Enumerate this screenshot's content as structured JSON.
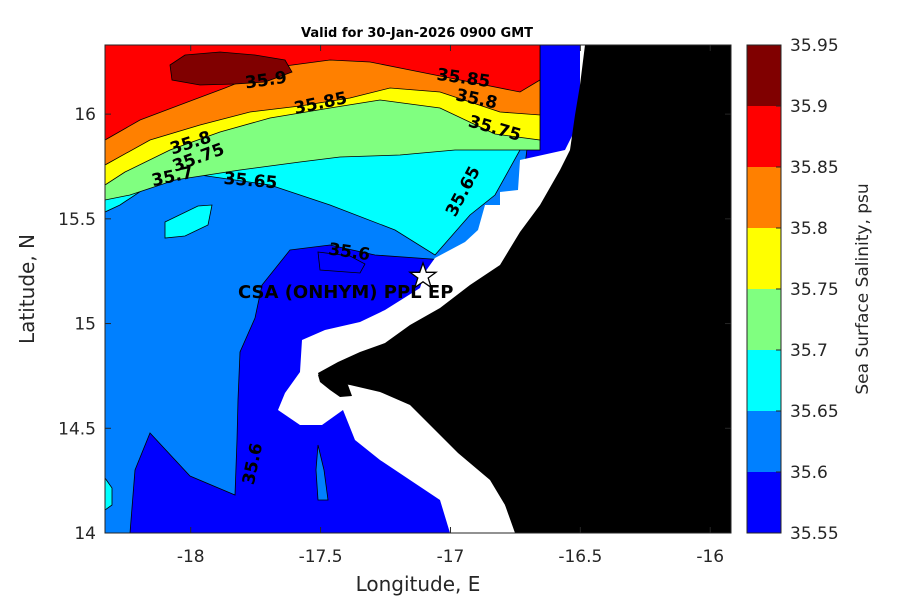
{
  "chart_data": {
    "type": "contourf-map",
    "title": "Valid for 30-Jan-2026 0900 GMT",
    "xlabel": "Longitude, E",
    "ylabel": "Latitude, N",
    "xlim": [
      -18.33,
      -15.92
    ],
    "ylim": [
      14.0,
      16.33
    ],
    "x_ticks": [
      -18,
      -17.5,
      -17,
      -16.5,
      -16
    ],
    "x_tick_labels": [
      "-18",
      "-17.5",
      "-17",
      "-16.5",
      "-16"
    ],
    "y_ticks": [
      14,
      14.5,
      15,
      15.5,
      16
    ],
    "y_tick_labels": [
      "14",
      "14.5",
      "15",
      "15.5",
      "16"
    ],
    "colorbar": {
      "label": "Sea Surface Salinity, psu",
      "levels": [
        "35.55",
        "35.6",
        "35.65",
        "35.7",
        "35.75",
        "35.8",
        "35.85",
        "35.9",
        "35.95"
      ],
      "colors": [
        "#0000FF",
        "#0080FF",
        "#00FFFF",
        "#80FF80",
        "#FFFF00",
        "#FF8000",
        "#FF0000",
        "#800000"
      ]
    },
    "contour_labels": [
      {
        "text": "35.9",
        "lon": -17.71,
        "lat": 16.16,
        "rotate": -8
      },
      {
        "text": "35.85",
        "lon": -17.5,
        "lat": 16.05,
        "rotate": -12
      },
      {
        "text": "35.85",
        "lon": -16.95,
        "lat": 16.17,
        "rotate": 8
      },
      {
        "text": "35.8",
        "lon": -16.9,
        "lat": 16.07,
        "rotate": 12
      },
      {
        "text": "35.75",
        "lon": -16.83,
        "lat": 15.93,
        "rotate": 16
      },
      {
        "text": "35.8",
        "lon": -18.0,
        "lat": 15.86,
        "rotate": -18
      },
      {
        "text": "35.75",
        "lon": -17.97,
        "lat": 15.79,
        "rotate": -20
      },
      {
        "text": "35.7",
        "lon": -18.07,
        "lat": 15.7,
        "rotate": -12
      },
      {
        "text": "35.65",
        "lon": -17.77,
        "lat": 15.68,
        "rotate": 5
      },
      {
        "text": "35.65",
        "lon": -16.95,
        "lat": 15.63,
        "rotate": -62
      },
      {
        "text": "35.6",
        "lon": -17.39,
        "lat": 15.34,
        "rotate": 8
      },
      {
        "text": "35.6",
        "lon": -17.76,
        "lat": 14.33,
        "rotate": -78
      }
    ],
    "site": {
      "label": "CSA (ONHYM) PPL EP",
      "lon": -17.1,
      "lat": 15.22,
      "marker": "star"
    },
    "land_color": "#000000",
    "nodata_color": "#FFFFFF"
  }
}
